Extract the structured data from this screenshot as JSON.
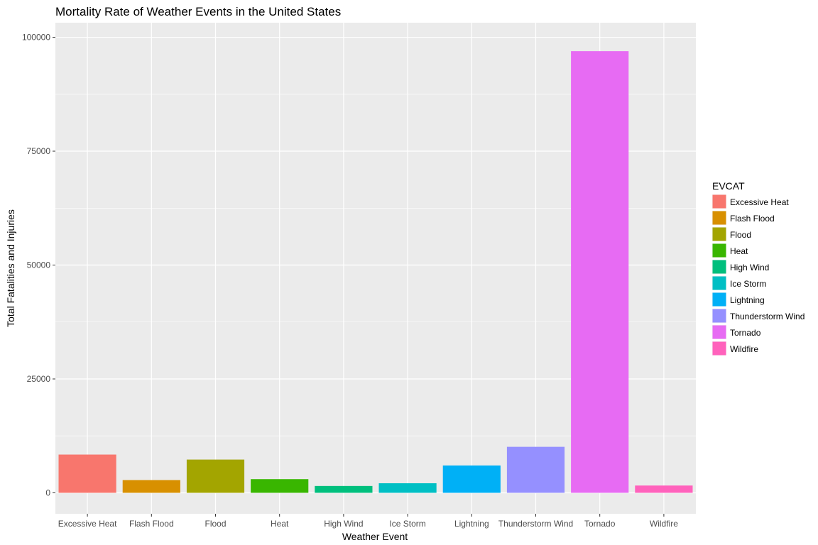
{
  "chart_data": {
    "type": "bar",
    "title": "Mortality Rate of Weather Events in the United States",
    "xlabel": "Weather Event",
    "ylabel": "Total Fatalities and Injuries",
    "ylim": [
      -4600,
      103200
    ],
    "yticks": [
      0,
      25000,
      50000,
      75000,
      100000
    ],
    "ytick_labels": [
      "0",
      "25000",
      "50000",
      "75000",
      "100000"
    ],
    "grid": true,
    "legend": {
      "title": "EVCAT",
      "placement": "right"
    },
    "categories": [
      "Excessive Heat",
      "Flash Flood",
      "Flood",
      "Heat",
      "High Wind",
      "Ice Storm",
      "Lightning",
      "Thunderstorm Wind",
      "Tornado",
      "Wildfire"
    ],
    "values": [
      8400,
      2800,
      7300,
      3000,
      1500,
      2100,
      6000,
      10100,
      96950,
      1600
    ],
    "colors": [
      "#F8766D",
      "#D89000",
      "#A3A500",
      "#39B600",
      "#00BF7D",
      "#00BFC4",
      "#00B0F6",
      "#9590FF",
      "#E76BF3",
      "#FF62BC"
    ]
  }
}
